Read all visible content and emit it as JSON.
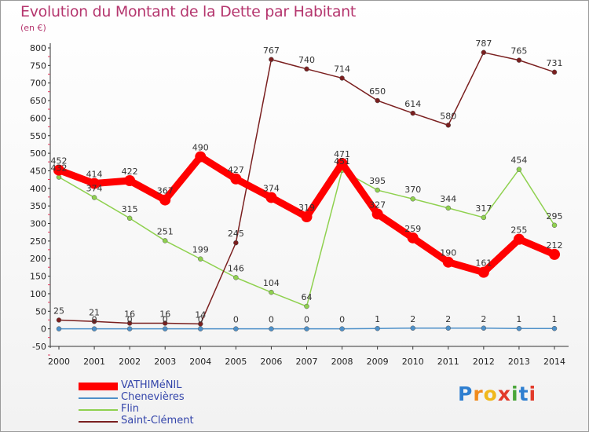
{
  "chart_data": {
    "type": "line",
    "title": "Evolution du Montant de la Dette par Habitant",
    "subtitle": "(en €)",
    "categories": [
      "2000",
      "2001",
      "2002",
      "2003",
      "2004",
      "2005",
      "2006",
      "2007",
      "2008",
      "2009",
      "2010",
      "2011",
      "2012",
      "2013",
      "2014"
    ],
    "ylim": [
      -50,
      800
    ],
    "yticks": [
      -50,
      0,
      50,
      100,
      150,
      200,
      250,
      300,
      350,
      400,
      450,
      500,
      550,
      600,
      650,
      700,
      750,
      800
    ],
    "grid": false,
    "legend_position": "bottom-left",
    "series": [
      {
        "name": "VATHIMéNIL",
        "color": "#ff0000",
        "values": [
          452,
          414,
          422,
          367,
          490,
          427,
          374,
          319,
          471,
          327,
          259,
          190,
          161,
          255,
          212
        ],
        "labels": [
          "452",
          "414",
          "422",
          "367",
          "490",
          "427",
          "374",
          "319",
          "471",
          "327",
          "259",
          "190",
          "161",
          "255",
          "212"
        ]
      },
      {
        "name": "Chenevières",
        "color": "#4d90c9",
        "values": [
          0,
          0,
          0,
          0,
          0,
          0,
          0,
          0,
          0,
          1,
          2,
          2,
          2,
          1,
          1
        ],
        "labels": [
          "",
          "0",
          "0",
          "0",
          "0",
          "0",
          "0",
          "0",
          "0",
          "1",
          "2",
          "2",
          "2",
          "1",
          "1"
        ]
      },
      {
        "name": "Flin",
        "color": "#8fd14f",
        "values": [
          432,
          374,
          315,
          251,
          199,
          146,
          104,
          64,
          451,
          395,
          370,
          344,
          317,
          454,
          295
        ],
        "labels": [
          "432",
          "374",
          "315",
          "251",
          "199",
          "146",
          "104",
          "64",
          "451",
          "395",
          "370",
          "344",
          "317",
          "454",
          "295"
        ]
      },
      {
        "name": "Saint-Clément",
        "color": "#7a1f1f",
        "values": [
          25,
          21,
          16,
          16,
          14,
          245,
          767,
          740,
          714,
          650,
          614,
          580,
          787,
          765,
          731
        ],
        "labels": [
          "25",
          "21",
          "16",
          "16",
          "14",
          "245",
          "767",
          "740",
          "714",
          "650",
          "614",
          "580",
          "787",
          "765",
          "731"
        ]
      }
    ]
  },
  "logo": {
    "text": "Proxiti",
    "letters": [
      "P",
      "r",
      "o",
      "x",
      "i",
      "t",
      "i"
    ],
    "colors": [
      "#2f7fd0",
      "#f08a1c",
      "#f0b81c",
      "#e23a2a",
      "#4aa63a",
      "#2f7fd0",
      "#e23a2a"
    ]
  }
}
